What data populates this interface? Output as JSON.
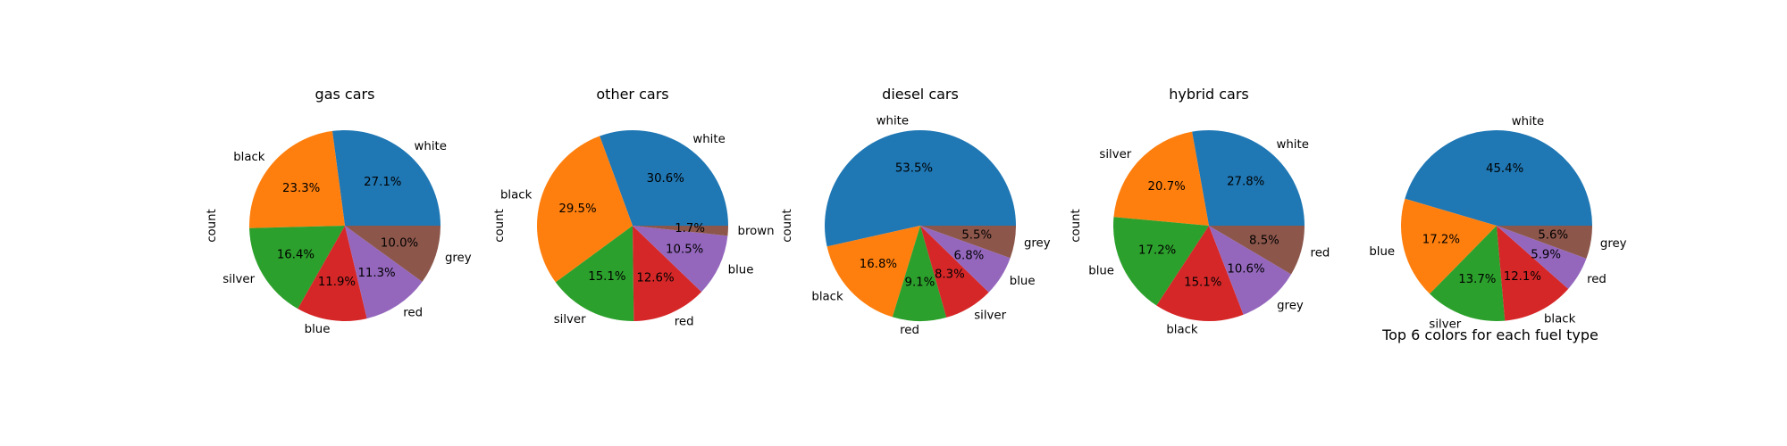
{
  "figure": {
    "suptitle": "Top 6 colors for each fuel type"
  },
  "chart_data": [
    {
      "type": "pie",
      "title": "gas cars",
      "ylabel": "count",
      "labels": [
        "white",
        "black",
        "silver",
        "blue",
        "red",
        "grey"
      ],
      "percentages": [
        27.1,
        23.3,
        16.4,
        11.9,
        11.3,
        10.0
      ],
      "pct_labels": [
        "27.1%",
        "23.3%",
        "16.4%",
        "11.9%",
        "11.3%",
        "10.0%"
      ],
      "colors": [
        "#1f77b4",
        "#ff7f0e",
        "#2ca02c",
        "#d62728",
        "#9467bd",
        "#8c564b"
      ]
    },
    {
      "type": "pie",
      "title": "other cars",
      "ylabel": "count",
      "labels": [
        "white",
        "black",
        "silver",
        "red",
        "blue",
        "brown"
      ],
      "percentages": [
        30.6,
        29.5,
        15.1,
        12.6,
        10.5,
        1.7
      ],
      "pct_labels": [
        "30.6%",
        "29.5%",
        "15.1%",
        "12.6%",
        "10.5%",
        "1.7%"
      ],
      "colors": [
        "#1f77b4",
        "#ff7f0e",
        "#2ca02c",
        "#d62728",
        "#9467bd",
        "#8c564b"
      ]
    },
    {
      "type": "pie",
      "title": "diesel cars",
      "ylabel": "count",
      "labels": [
        "white",
        "black",
        "red",
        "silver",
        "blue",
        "grey"
      ],
      "percentages": [
        53.5,
        16.8,
        9.1,
        8.3,
        6.8,
        5.5
      ],
      "pct_labels": [
        "53.5%",
        "16.8%",
        "9.1%",
        "8.3%",
        "6.8%",
        "5.5%"
      ],
      "colors": [
        "#1f77b4",
        "#ff7f0e",
        "#2ca02c",
        "#d62728",
        "#9467bd",
        "#8c564b"
      ]
    },
    {
      "type": "pie",
      "title": "hybrid cars",
      "ylabel": "count",
      "labels": [
        "white",
        "silver",
        "blue",
        "black",
        "grey",
        "red"
      ],
      "percentages": [
        27.8,
        20.7,
        17.2,
        15.1,
        10.6,
        8.5
      ],
      "pct_labels": [
        "27.8%",
        "20.7%",
        "17.2%",
        "15.1%",
        "10.6%",
        "8.5%"
      ],
      "colors": [
        "#1f77b4",
        "#ff7f0e",
        "#2ca02c",
        "#d62728",
        "#9467bd",
        "#8c564b"
      ]
    },
    {
      "type": "pie",
      "title": "",
      "ylabel": "",
      "labels": [
        "white",
        "blue",
        "silver",
        "black",
        "red",
        "grey"
      ],
      "percentages": [
        45.4,
        17.2,
        13.7,
        12.1,
        5.9,
        5.6
      ],
      "pct_labels": [
        "45.4%",
        "17.2%",
        "13.7%",
        "12.1%",
        "5.9%",
        "5.6%"
      ],
      "colors": [
        "#1f77b4",
        "#ff7f0e",
        "#2ca02c",
        "#d62728",
        "#9467bd",
        "#8c564b"
      ]
    }
  ]
}
